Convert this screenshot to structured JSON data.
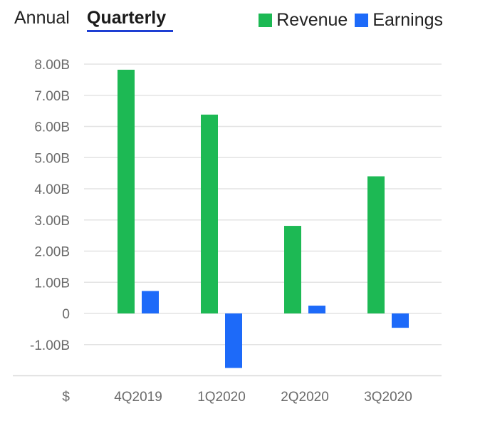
{
  "tabs": [
    {
      "label": "Annual",
      "active": false
    },
    {
      "label": "Quarterly",
      "active": true
    }
  ],
  "colors": {
    "revenue": "#1db954",
    "earnings": "#1d6af9",
    "tab_underline": "#1e3fd3"
  },
  "chart_data": {
    "type": "bar",
    "categories": [
      "4Q2019",
      "1Q2020",
      "2Q2020",
      "3Q2020"
    ],
    "series": [
      {
        "name": "Revenue",
        "color": "#1db954",
        "values": [
          7.82,
          6.38,
          2.81,
          4.4
        ]
      },
      {
        "name": "Earnings",
        "color": "#1d6af9",
        "values": [
          0.72,
          -1.75,
          0.25,
          -0.46
        ]
      }
    ],
    "yticks": [
      "8.00B",
      "7.00B",
      "6.00B",
      "5.00B",
      "4.00B",
      "3.00B",
      "2.00B",
      "1.00B",
      "0",
      "-1.00B"
    ],
    "ytick_values": [
      8,
      7,
      6,
      5,
      4,
      3,
      2,
      1,
      0,
      -1
    ],
    "ylim": [
      -2,
      8
    ],
    "xlabel_prefix": "$",
    "grid": true,
    "legend_position": "top-right"
  }
}
